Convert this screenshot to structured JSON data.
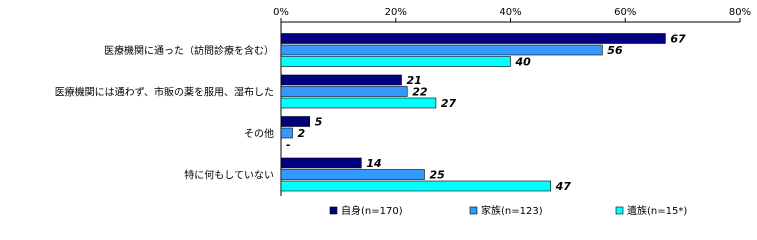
{
  "chart_data": {
    "type": "bar",
    "orientation": "horizontal",
    "categories": [
      "医療機関に通った（訪問診療を含む）",
      "医療機関には通わず、市販の薬を服用、湿布した",
      "その他",
      "特に何もしていない"
    ],
    "series": [
      {
        "name": "自身(n=170)",
        "color": "#000080",
        "values": [
          67,
          21,
          5,
          14
        ]
      },
      {
        "name": "家族(n=123)",
        "color": "#3399ff",
        "values": [
          56,
          22,
          2,
          25
        ]
      },
      {
        "name": "遺族(n=15*)",
        "color": "#00ffff",
        "values": [
          40,
          27,
          null,
          47
        ],
        "value_labels": [
          "40",
          "27",
          "-",
          "47"
        ]
      }
    ],
    "xlim": [
      0,
      80
    ],
    "xticks": [
      {
        "value": 0,
        "label": "0%"
      },
      {
        "value": 20,
        "label": "20%"
      },
      {
        "value": 40,
        "label": "40%"
      },
      {
        "value": 60,
        "label": "60%"
      },
      {
        "value": 80,
        "label": "80%"
      }
    ],
    "grid": false,
    "legend": "bottom"
  }
}
